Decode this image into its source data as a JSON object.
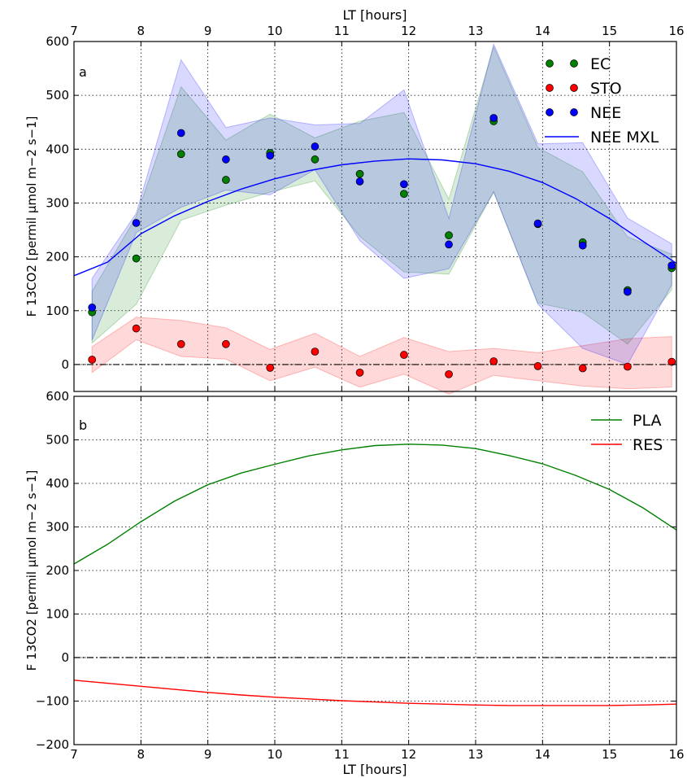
{
  "xlabel_top": "LT [hours]",
  "xlabel_bottom": "LT [hours]",
  "chart_data": [
    {
      "type": "scatter",
      "panel_label": "a",
      "ylabel": "F 13CO2 [permil μmol m−2 s−1]",
      "xlim": [
        7,
        16
      ],
      "ylim": [
        -50,
        600
      ],
      "xticks": [
        "7",
        "8",
        "9",
        "10",
        "11",
        "12",
        "13",
        "14",
        "15",
        "16"
      ],
      "yticks": [
        "0",
        "100",
        "200",
        "300",
        "400",
        "500",
        "600"
      ],
      "grid": true,
      "legend_position": "top-right",
      "reference_line": 0,
      "series": [
        {
          "name": "EC",
          "kind": "points",
          "color": "#008000",
          "x": [
            7.27,
            7.93,
            8.6,
            9.27,
            9.93,
            10.6,
            11.27,
            11.93,
            12.6,
            13.27,
            13.93,
            14.6,
            15.27,
            15.93
          ],
          "y": [
            97,
            197,
            391,
            343,
            393,
            381,
            354,
            317,
            240,
            452,
            261,
            227,
            138,
            179
          ],
          "band_lower": [
            40,
            112,
            268,
            296,
            320,
            341,
            238,
            172,
            168,
            320,
            114,
            97,
            38,
            139
          ],
          "band_upper": [
            136,
            275,
            516,
            417,
            465,
            421,
            452,
            468,
            307,
            590,
            403,
            358,
            237,
            205
          ]
        },
        {
          "name": "STO",
          "kind": "points",
          "color": "#ff0000",
          "x": [
            7.27,
            7.93,
            8.6,
            9.27,
            9.93,
            10.6,
            11.27,
            11.93,
            12.6,
            13.27,
            13.93,
            14.6,
            15.27,
            15.93
          ],
          "y": [
            9,
            67,
            38,
            38,
            -6,
            24,
            -15,
            18,
            -18,
            6,
            -3,
            -7,
            -4,
            5
          ],
          "band_lower": [
            -15,
            46,
            15,
            10,
            -30,
            -5,
            -42,
            -18,
            -55,
            -20,
            -30,
            -40,
            -45,
            -42
          ],
          "band_upper": [
            33,
            88,
            82,
            68,
            28,
            58,
            15,
            50,
            24,
            30,
            22,
            35,
            48,
            52
          ]
        },
        {
          "name": "NEE",
          "kind": "points",
          "color": "#0000ff",
          "x": [
            7.27,
            7.93,
            8.6,
            9.27,
            9.93,
            10.6,
            11.27,
            11.93,
            12.6,
            13.27,
            13.93,
            14.6,
            15.27,
            15.93
          ],
          "y": [
            106,
            263,
            430,
            381,
            388,
            405,
            340,
            335,
            223,
            458,
            262,
            221,
            135,
            184
          ],
          "band_lower": [
            45,
            245,
            292,
            324,
            315,
            362,
            230,
            160,
            178,
            321,
            112,
            30,
            0,
            148
          ],
          "band_upper": [
            160,
            281,
            566,
            440,
            458,
            445,
            448,
            510,
            271,
            595,
            410,
            412,
            272,
            224
          ]
        },
        {
          "name": "NEE MXL",
          "kind": "line",
          "color": "#0000ff",
          "x": [
            7.0,
            7.5,
            8.0,
            8.5,
            9.0,
            9.5,
            10.0,
            10.5,
            11.0,
            11.5,
            12.0,
            12.5,
            13.0,
            13.5,
            14.0,
            14.5,
            15.0,
            15.5,
            16.0
          ],
          "y": [
            165,
            190,
            243,
            276,
            303,
            326,
            345,
            360,
            371,
            378,
            382,
            380,
            373,
            359,
            338,
            308,
            271,
            229,
            188
          ]
        }
      ]
    },
    {
      "type": "line",
      "panel_label": "b",
      "ylabel": "F 13CO2 [permil μmol m−2 s−1]",
      "xlim": [
        7,
        16
      ],
      "ylim": [
        -200,
        600
      ],
      "xticks": [
        "7",
        "8",
        "9",
        "10",
        "11",
        "12",
        "13",
        "14",
        "15",
        "16"
      ],
      "yticks": [
        "−200",
        "−100",
        "0",
        "100",
        "200",
        "300",
        "400",
        "500",
        "600"
      ],
      "grid": true,
      "legend_position": "top-right",
      "reference_line": 0,
      "series": [
        {
          "name": "PLA",
          "color": "#008000",
          "x": [
            7.0,
            7.5,
            8.0,
            8.5,
            9.0,
            9.5,
            10.0,
            10.5,
            11.0,
            11.5,
            12.0,
            12.5,
            13.0,
            13.5,
            14.0,
            14.5,
            15.0,
            15.5,
            16.0
          ],
          "y": [
            215,
            260,
            312,
            359,
            397,
            424,
            444,
            463,
            477,
            487,
            490,
            488,
            480,
            464,
            445,
            418,
            386,
            344,
            293
          ]
        },
        {
          "name": "RES",
          "color": "#ff0000",
          "x": [
            7.0,
            7.5,
            8.0,
            8.5,
            9.0,
            9.5,
            10.0,
            10.5,
            11.0,
            11.5,
            12.0,
            12.5,
            13.0,
            13.5,
            14.0,
            14.5,
            15.0,
            15.5,
            16.0
          ],
          "y": [
            -52,
            -59,
            -66,
            -73,
            -80,
            -86,
            -91,
            -95,
            -99,
            -102,
            -105,
            -107,
            -109,
            -110,
            -110,
            -110,
            -110,
            -109,
            -107
          ]
        }
      ]
    }
  ]
}
